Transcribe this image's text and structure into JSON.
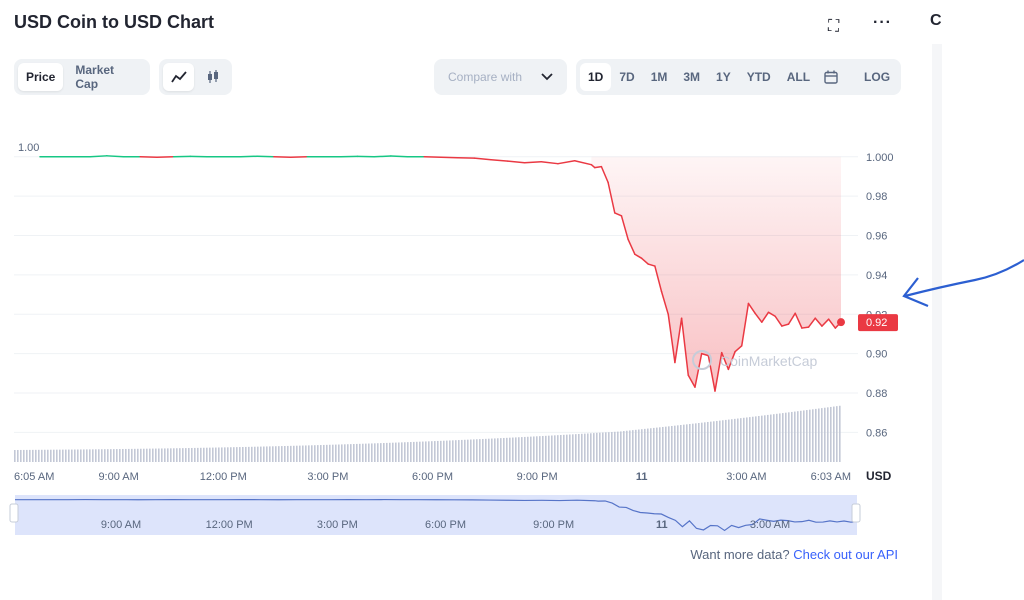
{
  "header": {
    "title": "USD Coin to USD Chart",
    "side_letter": "C"
  },
  "tabs": {
    "price": "Price",
    "market_cap": "Market Cap"
  },
  "compare": {
    "label": "Compare with"
  },
  "ranges": [
    "1D",
    "7D",
    "1M",
    "3M",
    "1Y",
    "YTD",
    "ALL"
  ],
  "log_label": "LOG",
  "footer": {
    "prefix": "Want more data?",
    "link": "Check out our API"
  },
  "colors": {
    "up": "#16c784",
    "down": "#ea3943",
    "navigator_fill": "#dde4fb",
    "navigator_line": "#5674c8",
    "volume": "#c3c8d6",
    "annotation": "#2c5fd1"
  },
  "chart_data": {
    "type": "line",
    "watermark": "CoinMarketCap",
    "left_label": "1.00",
    "current_label": "0.92",
    "current_value": 0.916,
    "y_ticks": [
      "1.000",
      "0.98",
      "0.96",
      "0.94",
      "0.92",
      "0.90",
      "0.88",
      "0.86"
    ],
    "y_unit": "USD",
    "ylim": [
      0.8475,
      1.0065
    ],
    "x_ticks": [
      "6:05 AM",
      "9:00 AM",
      "12:00 PM",
      "3:00 PM",
      "6:00 PM",
      "9:00 PM",
      "11",
      "3:00 AM",
      "6:03 AM"
    ],
    "navigator_ticks": [
      "9:00 AM",
      "12:00 PM",
      "3:00 PM",
      "6:00 PM",
      "9:00 PM",
      "11",
      "3:00 AM"
    ],
    "series": [
      {
        "x": [
          0,
          0.5,
          1,
          1.5,
          2,
          2.5,
          3,
          3.5,
          4,
          4.5,
          5,
          5.5,
          6,
          6.5,
          7,
          7.5,
          8,
          8.5,
          9,
          9.5,
          10,
          10.5,
          11,
          11.5,
          12,
          12.5,
          13,
          13.5,
          14,
          14.5,
          15,
          15.5,
          16,
          16.5,
          16.6,
          16.8,
          17,
          17.2,
          17.4,
          17.6,
          17.8,
          18,
          18.2,
          18.4,
          18.6,
          18.8,
          19,
          19.2,
          19.4,
          19.6,
          19.8,
          20,
          20.2,
          20.4,
          20.6,
          20.8,
          21,
          21.2,
          21.4,
          21.6,
          21.8,
          22,
          22.2,
          22.4,
          22.6,
          22.8,
          23,
          23.2,
          23.4,
          23.6,
          23.8,
          23.97
        ],
        "values": [
          1.0,
          1.0,
          1.0,
          1.0,
          1.0005,
          1.0,
          1.0,
          0.9998,
          1.0,
          1.0002,
          1.0,
          1.0,
          1.0,
          1.0003,
          1.0,
          0.9998,
          1.0,
          1.0,
          1.0,
          1.0002,
          1.0,
          1.0004,
          1.0,
          1.0,
          0.9998,
          0.9995,
          0.9993,
          0.9985,
          0.9978,
          0.997,
          0.9975,
          0.9965,
          0.998,
          0.996,
          0.9945,
          0.995,
          0.987,
          0.9715,
          0.97,
          0.958,
          0.9505,
          0.9485,
          0.9455,
          0.9445,
          0.9315,
          0.92,
          0.8955,
          0.918,
          0.889,
          0.883,
          0.9,
          0.899,
          0.881,
          0.9005,
          0.892,
          0.901,
          0.904,
          0.9255,
          0.9205,
          0.916,
          0.921,
          0.919,
          0.914,
          0.915,
          0.9205,
          0.913,
          0.9135,
          0.918,
          0.914,
          0.9175,
          0.913,
          0.916
        ]
      }
    ]
  }
}
